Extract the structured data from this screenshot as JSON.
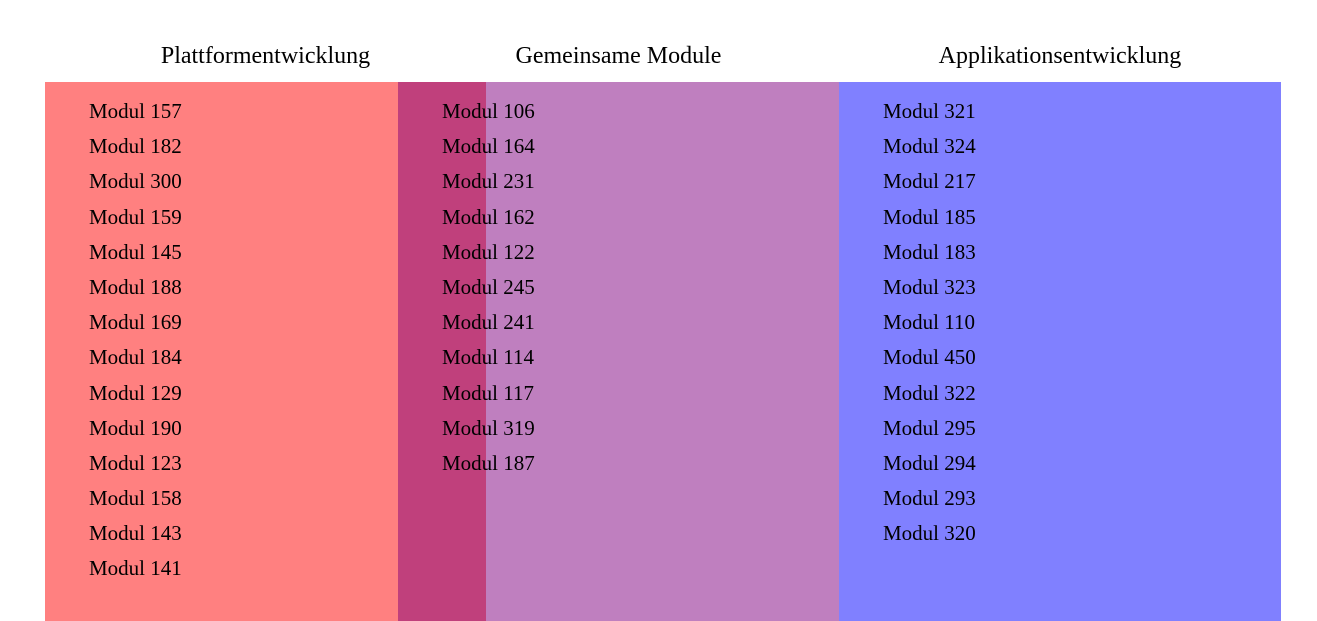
{
  "colors": {
    "platform": "#ff8080",
    "overlap": "#c0407c",
    "common": "#bf7fbf",
    "application": "#8080ff"
  },
  "columns": {
    "platform": {
      "title": "Plattformentwicklung",
      "modules": [
        "Modul 157",
        "Modul 182",
        "Modul 300",
        "Modul 159",
        "Modul 145",
        "Modul 188",
        "Modul 169",
        "Modul 184",
        "Modul 129",
        "Modul 190",
        "Modul 123",
        "Modul 158",
        "Modul 143",
        "Modul 141"
      ]
    },
    "common": {
      "title": "Gemeinsame Module",
      "modules": [
        "Modul 106",
        "Modul 164",
        "Modul 231",
        "Modul 162",
        "Modul 122",
        "Modul 245",
        "Modul 241",
        "Modul 114",
        "Modul 117",
        "Modul 319",
        "Modul 187"
      ]
    },
    "application": {
      "title": "Applikationsentwicklung",
      "modules": [
        "Modul 321",
        "Modul 324",
        "Modul 217",
        "Modul 185",
        "Modul 183",
        "Modul 323",
        "Modul 110",
        "Modul 450",
        "Modul 322",
        "Modul 295",
        "Modul 294",
        "Modul 293",
        "Modul 320"
      ]
    }
  }
}
